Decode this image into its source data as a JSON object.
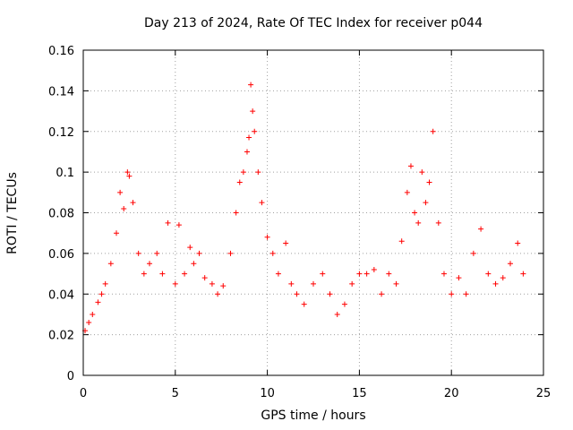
{
  "chart_data": {
    "type": "scatter",
    "title": "Day 213 of 2024, Rate Of TEC Index for receiver p044",
    "xlabel": "GPS time / hours",
    "ylabel": "ROTI / TECUs",
    "xlim": [
      0,
      25
    ],
    "ylim": [
      0,
      0.16
    ],
    "xticks": [
      0,
      5,
      10,
      15,
      20,
      25
    ],
    "xtick_labels": [
      "0",
      "5",
      "10",
      "15",
      "20",
      "25"
    ],
    "yticks": [
      0,
      0.02,
      0.04,
      0.06,
      0.08,
      0.1,
      0.12,
      0.14,
      0.16
    ],
    "ytick_labels": [
      "0",
      "0.02",
      "0.04",
      "0.06",
      "0.08",
      "0.1",
      "0.12",
      "0.14",
      "0.16"
    ],
    "grid": true,
    "marker": "+",
    "color": "#ff0000",
    "series": [
      {
        "name": "ROTI",
        "x": [
          0.1,
          0.3,
          0.5,
          0.8,
          1.0,
          1.2,
          1.5,
          1.8,
          2.0,
          2.2,
          2.4,
          2.5,
          2.7,
          3.0,
          3.3,
          3.6,
          4.0,
          4.3,
          4.6,
          5.0,
          5.2,
          5.5,
          5.8,
          6.0,
          6.3,
          6.6,
          7.0,
          7.3,
          7.6,
          8.0,
          8.3,
          8.5,
          8.7,
          8.9,
          9.0,
          9.1,
          9.2,
          9.3,
          9.5,
          9.7,
          10.0,
          10.3,
          10.6,
          11.0,
          11.3,
          11.6,
          12.0,
          12.5,
          13.0,
          13.4,
          13.8,
          14.2,
          14.6,
          15.0,
          15.4,
          15.8,
          16.2,
          16.6,
          17.0,
          17.3,
          17.6,
          17.8,
          18.0,
          18.2,
          18.4,
          18.6,
          18.8,
          19.0,
          19.3,
          19.6,
          20.0,
          20.4,
          20.8,
          21.2,
          21.6,
          22.0,
          22.4,
          22.8,
          23.2,
          23.6,
          23.9
        ],
        "y": [
          0.022,
          0.026,
          0.03,
          0.036,
          0.04,
          0.045,
          0.055,
          0.07,
          0.09,
          0.082,
          0.1,
          0.098,
          0.085,
          0.06,
          0.05,
          0.055,
          0.06,
          0.05,
          0.075,
          0.045,
          0.074,
          0.05,
          0.063,
          0.055,
          0.06,
          0.048,
          0.045,
          0.04,
          0.044,
          0.06,
          0.08,
          0.095,
          0.1,
          0.11,
          0.117,
          0.143,
          0.13,
          0.12,
          0.1,
          0.085,
          0.068,
          0.06,
          0.05,
          0.065,
          0.045,
          0.04,
          0.035,
          0.045,
          0.05,
          0.04,
          0.03,
          0.035,
          0.045,
          0.05,
          0.05,
          0.052,
          0.04,
          0.05,
          0.045,
          0.066,
          0.09,
          0.103,
          0.08,
          0.075,
          0.1,
          0.085,
          0.095,
          0.12,
          0.075,
          0.05,
          0.04,
          0.048,
          0.04,
          0.06,
          0.072,
          0.05,
          0.045,
          0.048,
          0.055,
          0.065,
          0.05
        ]
      }
    ]
  }
}
